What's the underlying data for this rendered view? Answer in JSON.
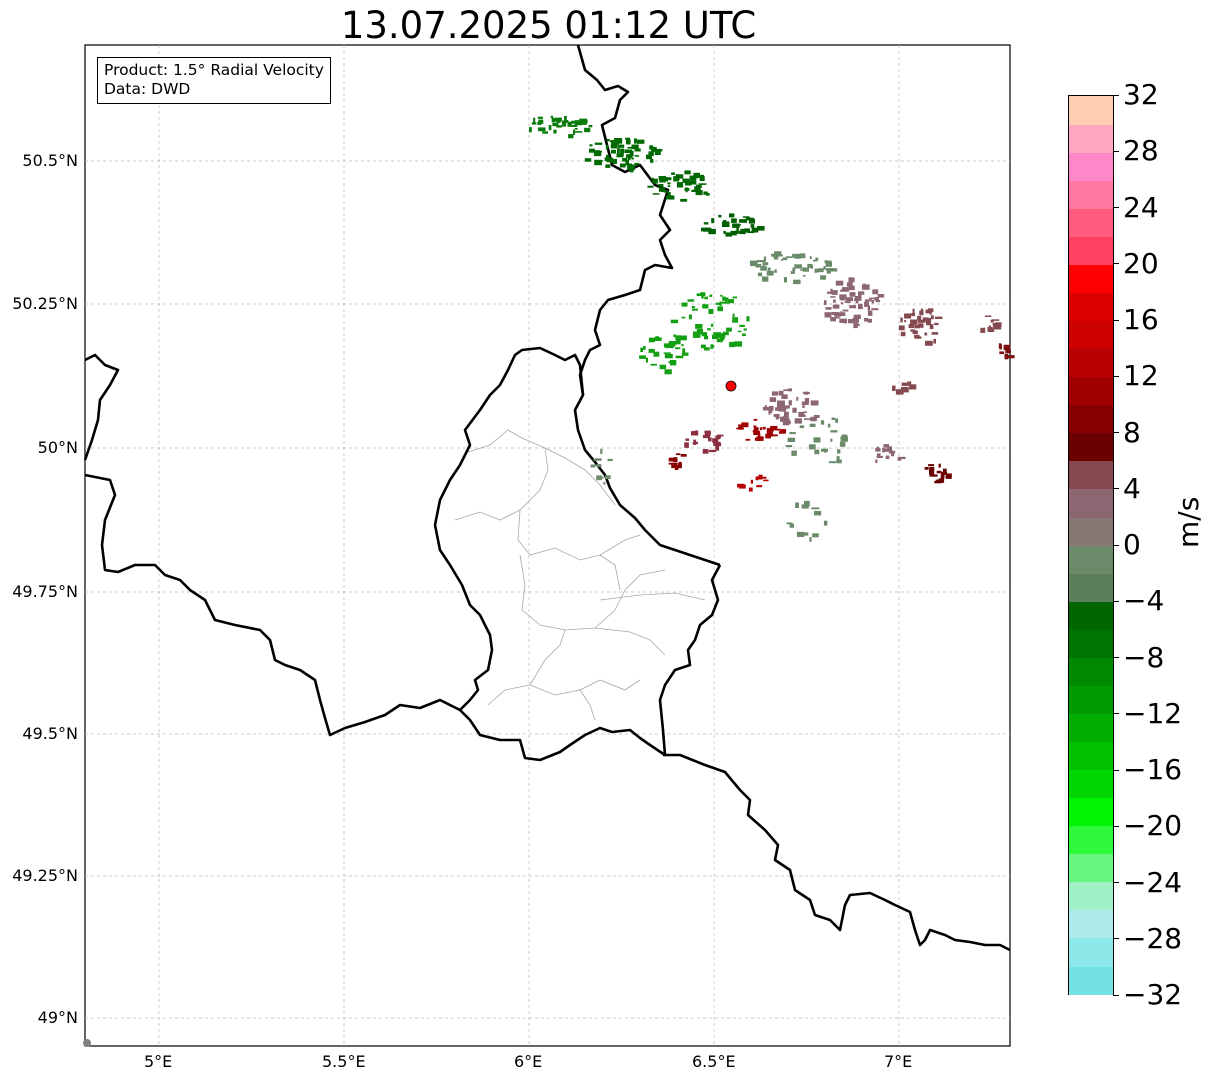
{
  "title": "13.07.2025 01:12 UTC",
  "info": {
    "product": "Product: 1.5° Radial Velocity",
    "data": "Data: DWD"
  },
  "axes": {
    "lon_ticks": [
      "5°E",
      "5.5°E",
      "6°E",
      "6.5°E",
      "7°E"
    ],
    "lat_ticks": [
      "50.5°N",
      "50.25°N",
      "50°N",
      "49.75°N",
      "49.5°N",
      "49.25°N",
      "49°N"
    ],
    "lon_range": [
      4.8,
      7.3
    ],
    "lat_range": [
      48.95,
      50.7
    ],
    "grid": true
  },
  "radar_site": {
    "lon": 6.55,
    "lat": 50.11,
    "color": "#ff0000"
  },
  "colorbar": {
    "label": "m/s",
    "ticks": [
      "32",
      "28",
      "24",
      "20",
      "16",
      "12",
      "8",
      "4",
      "0",
      "−4",
      "−8",
      "−12",
      "−16",
      "−20",
      "−24",
      "−28",
      "−32"
    ],
    "colors": [
      "#73e2e6",
      "#8ee8ea",
      "#aee9ec",
      "#a0f1c8",
      "#66f57e",
      "#2ef93a",
      "#00f500",
      "#00d600",
      "#00c000",
      "#00ad00",
      "#009a00",
      "#008800",
      "#007400",
      "#006600",
      "#5a7f5a",
      "#6a8a6a",
      "#877775",
      "#8c6670",
      "#844a50",
      "#6b0000",
      "#860000",
      "#a00000",
      "#b80000",
      "#cd0000",
      "#de0000",
      "#ff0000",
      "#ff4060",
      "#ff5c80",
      "#ff78a0",
      "#ff88c8",
      "#ffa8c0",
      "#ffcdb0"
    ]
  }
}
